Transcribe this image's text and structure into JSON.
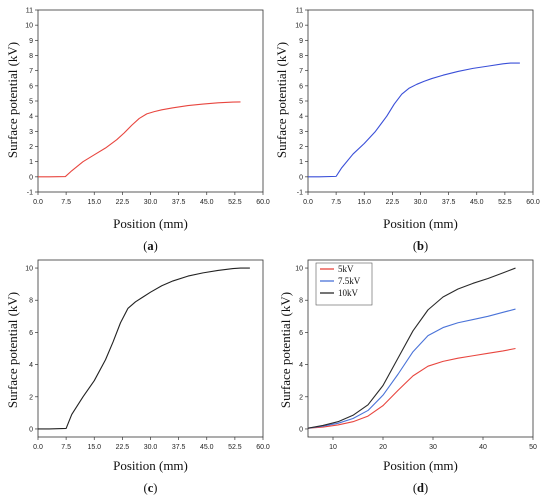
{
  "chart_data": [
    {
      "type": "line",
      "panel_label": "a",
      "xlabel": "Position (mm)",
      "ylabel": "Surface potential (kV)",
      "xlim": [
        0,
        60
      ],
      "ylim": [
        -1,
        11
      ],
      "xticks": [
        "0.0",
        "7.5",
        "15.0",
        "22.5",
        "30.0",
        "37.5",
        "45.0",
        "52.5",
        "60.0"
      ],
      "yticks": [
        "-1",
        "0",
        "1",
        "2",
        "3",
        "4",
        "5",
        "6",
        "7",
        "8",
        "9",
        "10",
        "11"
      ],
      "series": [
        {
          "color": "#e8463f",
          "x": [
            0,
            3,
            7.3,
            9,
            12,
            15,
            18,
            21,
            23,
            25,
            27,
            29,
            31,
            33,
            36,
            40,
            44,
            48,
            52,
            54
          ],
          "y": [
            0,
            0,
            0.02,
            0.4,
            1.0,
            1.45,
            1.9,
            2.45,
            2.9,
            3.4,
            3.85,
            4.15,
            4.3,
            4.42,
            4.55,
            4.7,
            4.8,
            4.88,
            4.93,
            4.94
          ]
        }
      ]
    },
    {
      "type": "line",
      "panel_label": "b",
      "xlabel": "Position (mm)",
      "ylabel": "Surface potential (kV)",
      "xlim": [
        0,
        60
      ],
      "ylim": [
        -1,
        11
      ],
      "xticks": [
        "0.0",
        "7.5",
        "15.0",
        "22.5",
        "30.0",
        "37.5",
        "45.0",
        "52.5",
        "60.0"
      ],
      "yticks": [
        "-1",
        "0",
        "1",
        "2",
        "3",
        "4",
        "5",
        "6",
        "7",
        "8",
        "9",
        "10",
        "11"
      ],
      "series": [
        {
          "color": "#3a4fd8",
          "x": [
            0,
            3,
            7.5,
            9,
            12,
            15,
            18,
            21,
            23,
            25,
            27,
            29,
            31,
            33,
            36,
            40,
            44,
            48,
            52,
            54,
            56.5
          ],
          "y": [
            0,
            0,
            0.03,
            0.6,
            1.5,
            2.2,
            3.0,
            4.0,
            4.8,
            5.45,
            5.85,
            6.1,
            6.3,
            6.48,
            6.7,
            6.95,
            7.15,
            7.3,
            7.45,
            7.5,
            7.5
          ]
        }
      ]
    },
    {
      "type": "line",
      "panel_label": "c",
      "xlabel": "Position (mm)",
      "ylabel": "Surface potential (kV)",
      "xlim": [
        0,
        60
      ],
      "ylim": [
        -0.5,
        10.5
      ],
      "xticks": [
        "0.0",
        "7.5",
        "15.0",
        "22.5",
        "30.0",
        "37.5",
        "45.0",
        "52.5",
        "60.0"
      ],
      "yticks": [
        "0",
        "2",
        "4",
        "6",
        "8",
        "10"
      ],
      "series": [
        {
          "color": "#222222",
          "x": [
            0,
            3,
            7.5,
            9,
            12,
            15,
            18,
            20,
            22,
            24,
            26,
            28,
            30,
            33,
            36,
            40,
            44,
            48,
            52,
            54,
            56.5
          ],
          "y": [
            0,
            0,
            0.03,
            0.9,
            2.0,
            3.0,
            4.3,
            5.4,
            6.6,
            7.5,
            7.9,
            8.2,
            8.5,
            8.9,
            9.2,
            9.5,
            9.7,
            9.85,
            9.97,
            10.0,
            10.0
          ]
        }
      ]
    },
    {
      "type": "line",
      "panel_label": "d",
      "xlabel": "Position (mm)",
      "ylabel": "Surface potential (kV)",
      "xlim": [
        5,
        50
      ],
      "ylim": [
        -0.5,
        10.5
      ],
      "xticks": [
        "10",
        "20",
        "30",
        "40",
        "50"
      ],
      "xtick_values": [
        10,
        20,
        30,
        40,
        50
      ],
      "yticks": [
        "0",
        "2",
        "4",
        "6",
        "8",
        "10"
      ],
      "legend_position": "top-left",
      "series": [
        {
          "name": "5kV",
          "color": "#e8463f",
          "x": [
            5,
            8,
            11,
            14,
            17,
            20,
            23,
            26,
            29,
            32,
            35,
            38,
            41,
            44,
            46.5
          ],
          "y": [
            0.05,
            0.12,
            0.25,
            0.45,
            0.8,
            1.45,
            2.4,
            3.3,
            3.9,
            4.2,
            4.4,
            4.55,
            4.7,
            4.85,
            5.0
          ]
        },
        {
          "name": "7.5kV",
          "color": "#4a73d8",
          "x": [
            5,
            8,
            11,
            14,
            17,
            20,
            23,
            26,
            29,
            32,
            35,
            38,
            41,
            44,
            46.5
          ],
          "y": [
            0.05,
            0.18,
            0.35,
            0.65,
            1.15,
            2.1,
            3.4,
            4.8,
            5.8,
            6.3,
            6.6,
            6.8,
            7.0,
            7.25,
            7.45
          ]
        },
        {
          "name": "10kV",
          "color": "#2a2a2a",
          "x": [
            5,
            8,
            11,
            14,
            17,
            20,
            23,
            26,
            29,
            32,
            35,
            38,
            41,
            44,
            46.5
          ],
          "y": [
            0.05,
            0.22,
            0.45,
            0.85,
            1.5,
            2.7,
            4.4,
            6.1,
            7.4,
            8.2,
            8.7,
            9.05,
            9.35,
            9.7,
            10.0
          ]
        }
      ]
    }
  ]
}
